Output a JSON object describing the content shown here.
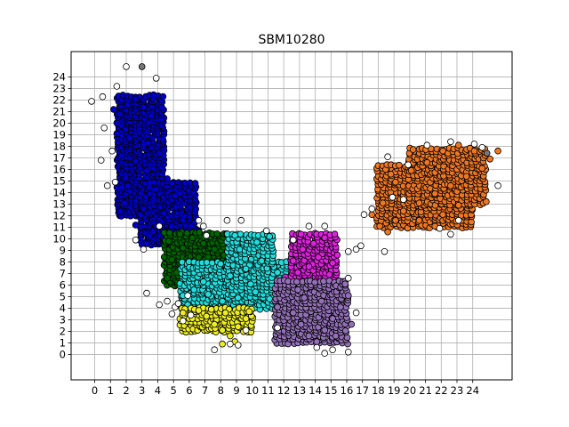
{
  "chart_data": {
    "type": "scatter",
    "title": "SBM10280",
    "xlabel": "",
    "ylabel": "",
    "xlim": [
      -1.5,
      26.5
    ],
    "ylim": [
      -2.2,
      26.2
    ],
    "xticks": [
      0,
      1,
      2,
      3,
      4,
      5,
      6,
      7,
      8,
      9,
      10,
      11,
      12,
      13,
      14,
      15,
      16,
      17,
      18,
      19,
      20,
      21,
      22,
      23,
      24
    ],
    "yticks": [
      0,
      1,
      2,
      3,
      4,
      5,
      6,
      7,
      8,
      9,
      10,
      11,
      12,
      13,
      14,
      15,
      16,
      17,
      18,
      19,
      20,
      21,
      22,
      23,
      24
    ],
    "grid": true,
    "legend": "none",
    "series": [
      {
        "color": "#0000cc",
        "regions": [
          [
            1.5,
            4.5,
            12,
            22.5
          ],
          [
            3,
            6.5,
            9.5,
            15
          ]
        ],
        "points": [
          [
            1.2,
            21.2
          ],
          [
            1.6,
            20.8
          ],
          [
            2.1,
            21.6
          ],
          [
            2.6,
            22.1
          ],
          [
            3.1,
            21.4
          ],
          [
            3.6,
            20.6
          ],
          [
            4.2,
            20.3
          ],
          [
            1.4,
            19.1
          ],
          [
            2.2,
            18.7
          ],
          [
            3.4,
            18.3
          ],
          [
            4.1,
            17.4
          ],
          [
            2.6,
            16.7
          ],
          [
            3.3,
            15.9
          ],
          [
            4.6,
            15.2
          ],
          [
            2.1,
            14.6
          ],
          [
            3.9,
            14.3
          ],
          [
            5.1,
            13.7
          ],
          [
            1.9,
            13.1
          ],
          [
            3.1,
            12.6
          ],
          [
            4.4,
            12.2
          ],
          [
            5.6,
            11.6
          ],
          [
            2.6,
            11.2
          ],
          [
            3.7,
            10.6
          ],
          [
            4.9,
            10.3
          ],
          [
            6.1,
            11.1
          ],
          [
            3.3,
            9.6
          ],
          [
            4.6,
            9.2
          ],
          [
            5.9,
            10.2
          ],
          [
            6.6,
            10.7
          ],
          [
            2.9,
            12.1
          ],
          [
            1.6,
            12.4
          ],
          [
            4.9,
            14.8
          ]
        ]
      },
      {
        "color": "#006600",
        "regions": [
          [
            4.5,
            8.5,
            6,
            10.5
          ]
        ],
        "points": [
          [
            4.7,
            9.8
          ],
          [
            5.4,
            10.4
          ],
          [
            6.2,
            10.1
          ],
          [
            6.9,
            9.6
          ],
          [
            7.6,
            9.1
          ],
          [
            8.2,
            8.6
          ],
          [
            4.9,
            8.2
          ],
          [
            5.8,
            7.9
          ],
          [
            6.6,
            8.4
          ],
          [
            7.3,
            7.7
          ],
          [
            8.1,
            7.3
          ],
          [
            5.2,
            7.1
          ],
          [
            6.1,
            6.6
          ],
          [
            7.1,
            6.9
          ],
          [
            8.4,
            6.4
          ],
          [
            5.6,
            9.2
          ],
          [
            8.8,
            8.1
          ],
          [
            4.6,
            6.6
          ]
        ]
      },
      {
        "color": "#22dddd",
        "regions": [
          [
            5.5,
            13,
            4,
            8
          ],
          [
            8.5,
            11.5,
            5,
            10.5
          ]
        ],
        "points": [
          [
            5.6,
            5.1
          ],
          [
            6.3,
            5.6
          ],
          [
            7.2,
            5.2
          ],
          [
            8.1,
            4.6
          ],
          [
            9.1,
            4.9
          ],
          [
            10.2,
            5.4
          ],
          [
            11.1,
            4.8
          ],
          [
            12.2,
            4.3
          ],
          [
            6.9,
            6.3
          ],
          [
            8.6,
            6.8
          ],
          [
            9.6,
            7.4
          ],
          [
            10.6,
            8.1
          ],
          [
            9.2,
            9.1
          ],
          [
            10.3,
            9.7
          ],
          [
            11.1,
            10.2
          ],
          [
            12.6,
            5.9
          ],
          [
            13.1,
            6.6
          ],
          [
            5.9,
            4.3
          ],
          [
            7.6,
            4.1
          ],
          [
            9.9,
            6.1
          ],
          [
            11.6,
            7.1
          ],
          [
            8.9,
            10.3
          ]
        ]
      },
      {
        "color": "#eeee22",
        "regions": [
          [
            5.5,
            10,
            2,
            4
          ]
        ],
        "points": [
          [
            5.6,
            3.6
          ],
          [
            6.2,
            3.1
          ],
          [
            7.1,
            3.3
          ],
          [
            7.6,
            2.6
          ],
          [
            8.1,
            2.1
          ],
          [
            8.6,
            1.6
          ],
          [
            9.1,
            2.4
          ],
          [
            9.6,
            3.1
          ],
          [
            8.3,
            3.6
          ],
          [
            7.4,
            3.9
          ],
          [
            8.9,
            1.1
          ],
          [
            8.1,
            0.9
          ],
          [
            6.6,
            3.8
          ],
          [
            9.8,
            3.7
          ]
        ]
      },
      {
        "color": "#dd22dd",
        "regions": [
          [
            12.5,
            15.5,
            6.5,
            10.5
          ]
        ],
        "points": [
          [
            12.6,
            8.1
          ],
          [
            13.2,
            9.1
          ],
          [
            13.9,
            9.6
          ],
          [
            14.6,
            10.1
          ],
          [
            12.9,
            7.1
          ],
          [
            13.6,
            7.6
          ],
          [
            14.2,
            8.4
          ],
          [
            15.1,
            7.9
          ],
          [
            15.4,
            8.6
          ],
          [
            14.9,
            6.9
          ],
          [
            12.1,
            6.7
          ],
          [
            13.1,
            10.4
          ]
        ]
      },
      {
        "color": "#9370b8",
        "regions": [
          [
            11.5,
            16,
            1,
            6.5
          ]
        ],
        "points": [
          [
            11.6,
            4.1
          ],
          [
            12.6,
            3.6
          ],
          [
            13.1,
            2.6
          ],
          [
            13.6,
            1.6
          ],
          [
            14.1,
            1.1
          ],
          [
            14.6,
            2.1
          ],
          [
            15.1,
            3.1
          ],
          [
            15.6,
            4.1
          ],
          [
            16.1,
            5.1
          ],
          [
            15.9,
            6.1
          ],
          [
            12.9,
            5.6
          ],
          [
            14.4,
            4.6
          ],
          [
            15.3,
            1.6
          ],
          [
            13.3,
            4.9
          ],
          [
            16.3,
            2.6
          ]
        ]
      },
      {
        "color": "#ee7722",
        "regions": [
          [
            18,
            24,
            11,
            16.5
          ],
          [
            20,
            25,
            13,
            18
          ]
        ],
        "points": [
          [
            17.6,
            12.1
          ],
          [
            18.1,
            11.1
          ],
          [
            18.6,
            10.6
          ],
          [
            19.1,
            11.6
          ],
          [
            18.3,
            13.1
          ],
          [
            19.6,
            12.4
          ],
          [
            20.6,
            13.1
          ],
          [
            21.6,
            13.9
          ],
          [
            22.6,
            14.6
          ],
          [
            23.6,
            15.4
          ],
          [
            24.6,
            16.1
          ],
          [
            25.1,
            16.9
          ],
          [
            24.1,
            17.6
          ],
          [
            23.1,
            18.1
          ],
          [
            22.1,
            17.6
          ],
          [
            21.1,
            16.6
          ],
          [
            20.1,
            15.9
          ],
          [
            19.1,
            14.9
          ],
          [
            20.6,
            11.6
          ],
          [
            22.1,
            12.1
          ],
          [
            23.1,
            12.9
          ],
          [
            25.6,
            17.6
          ],
          [
            18.8,
            15.6
          ],
          [
            21.6,
            11.1
          ]
        ]
      }
    ],
    "unassigned": {
      "color": "#ffffff",
      "points": [
        [
          -0.2,
          21.9
        ],
        [
          0.5,
          22.3
        ],
        [
          1.4,
          23.2
        ],
        [
          2,
          24.9
        ],
        [
          3.9,
          23.9
        ],
        [
          0.6,
          19.6
        ],
        [
          0.4,
          16.8
        ],
        [
          1.1,
          17.6
        ],
        [
          0.8,
          14.6
        ],
        [
          1.3,
          14.9
        ],
        [
          2.6,
          9.9
        ],
        [
          3.1,
          9.1
        ],
        [
          4.1,
          11.1
        ],
        [
          3.3,
          5.3
        ],
        [
          4.6,
          4.6
        ],
        [
          4.1,
          4.3
        ],
        [
          5.1,
          4.1
        ],
        [
          4.9,
          3.5
        ],
        [
          5.6,
          2.9
        ],
        [
          6.1,
          3.4
        ],
        [
          7.6,
          0.4
        ],
        [
          8.6,
          0.9
        ],
        [
          9.1,
          0.8
        ],
        [
          9.6,
          2.1
        ],
        [
          9.3,
          11.6
        ],
        [
          10.9,
          10.7
        ],
        [
          11.6,
          2.3
        ],
        [
          12.6,
          9.9
        ],
        [
          13.6,
          11.1
        ],
        [
          14.6,
          11.1
        ],
        [
          16.1,
          8.9
        ],
        [
          16.6,
          9.1
        ],
        [
          16.9,
          9.4
        ],
        [
          16.1,
          6.6
        ],
        [
          16.6,
          3.6
        ],
        [
          14.1,
          0.6
        ],
        [
          14.6,
          0.1
        ],
        [
          15.1,
          0.4
        ],
        [
          16.1,
          0.2
        ],
        [
          17.1,
          12.1
        ],
        [
          17.6,
          12.6
        ],
        [
          18.4,
          8.9
        ],
        [
          18.9,
          13.6
        ],
        [
          19.9,
          16.4
        ],
        [
          18.6,
          17.1
        ],
        [
          21.1,
          18.1
        ],
        [
          22.6,
          18.4
        ],
        [
          24.1,
          18.2
        ],
        [
          24.6,
          17.9
        ],
        [
          25.6,
          14.6
        ],
        [
          23.1,
          11.6
        ],
        [
          21.9,
          10.9
        ],
        [
          22.6,
          10.4
        ],
        [
          19.6,
          13.4
        ],
        [
          8.4,
          11.6
        ],
        [
          6.9,
          11.1
        ],
        [
          6.6,
          11.6
        ],
        [
          7.1,
          10.3
        ],
        [
          5.3,
          4.4
        ],
        [
          5.9,
          5.1
        ]
      ]
    },
    "highlight_points": [
      {
        "x": 3,
        "y": 24.9,
        "color": "#777777"
      },
      {
        "x": 24.9,
        "y": 17.4,
        "color": "#777777"
      }
    ]
  }
}
